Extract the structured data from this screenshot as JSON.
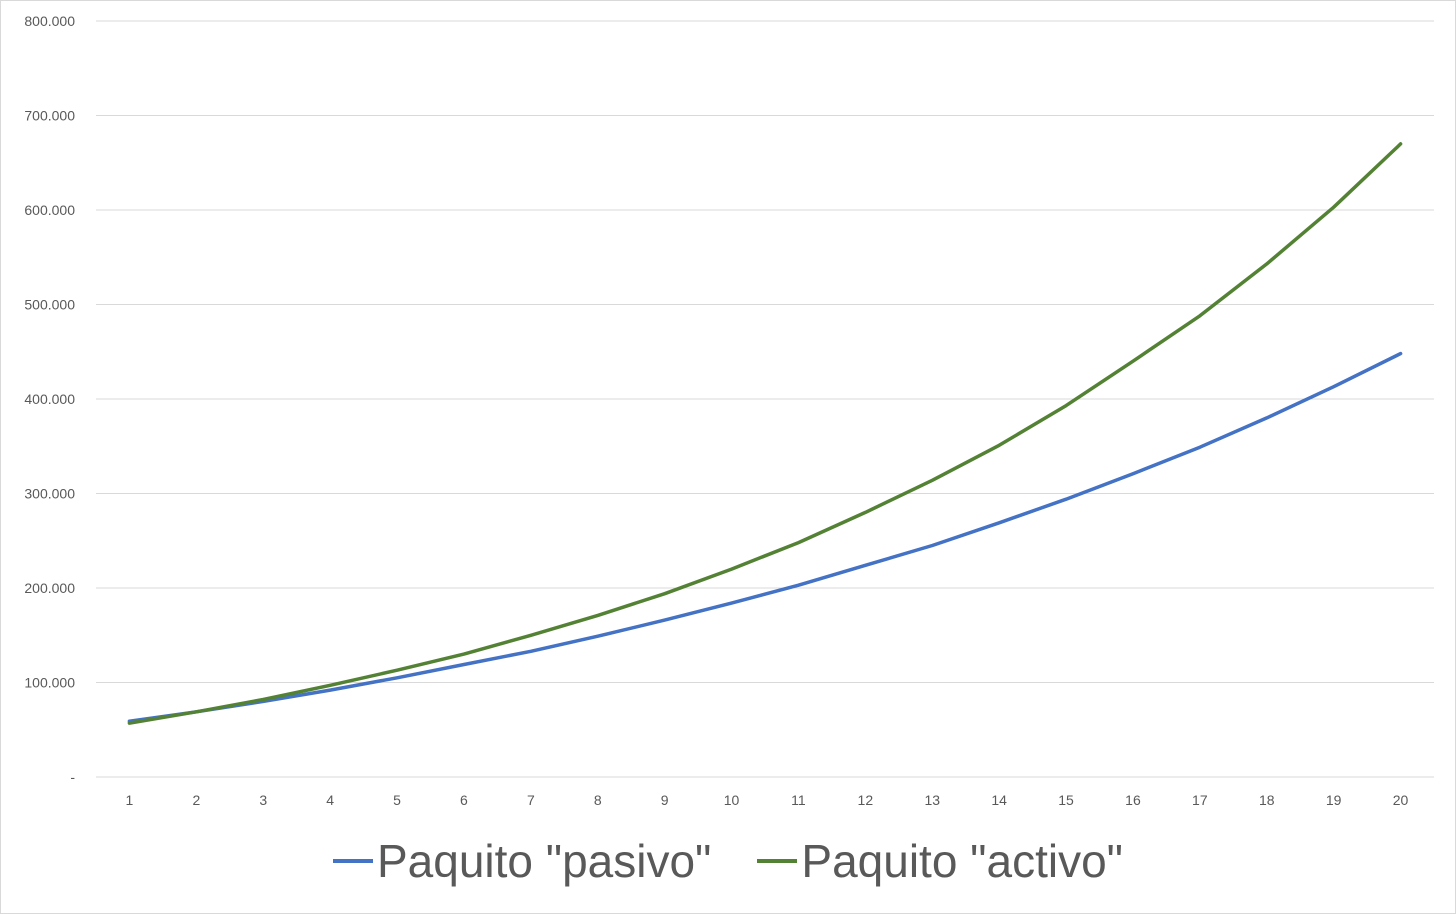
{
  "chart_data": {
    "type": "line",
    "title": "",
    "xlabel": "",
    "ylabel": "",
    "categories": [
      "1",
      "2",
      "3",
      "4",
      "5",
      "6",
      "7",
      "8",
      "9",
      "10",
      "11",
      "12",
      "13",
      "14",
      "15",
      "16",
      "17",
      "18",
      "19",
      "20"
    ],
    "ylim": [
      0,
      800000
    ],
    "yticks": [
      {
        "value": 0,
        "label": "-"
      },
      {
        "value": 100000,
        "label": "100.000"
      },
      {
        "value": 200000,
        "label": "200.000"
      },
      {
        "value": 300000,
        "label": "300.000"
      },
      {
        "value": 400000,
        "label": "400.000"
      },
      {
        "value": 500000,
        "label": "500.000"
      },
      {
        "value": 600000,
        "label": "600.000"
      },
      {
        "value": 700000,
        "label": "700.000"
      },
      {
        "value": 800000,
        "label": "800.000"
      }
    ],
    "grid": true,
    "legend_position": "bottom",
    "series": [
      {
        "name": "Paquito \"pasivo\"",
        "color": "#4472c4",
        "values": [
          59000,
          69000,
          80000,
          92000,
          105000,
          119000,
          133000,
          149000,
          166000,
          184000,
          203000,
          224000,
          245000,
          269000,
          294000,
          321000,
          349000,
          380000,
          413000,
          448000
        ]
      },
      {
        "name": "Paquito \"activo\"",
        "color": "#548235",
        "values": [
          57000,
          69000,
          82000,
          97000,
          113000,
          130000,
          150000,
          171000,
          194000,
          220000,
          248000,
          280000,
          314000,
          351000,
          393000,
          440000,
          488000,
          543000,
          603000,
          670000
        ]
      }
    ]
  }
}
